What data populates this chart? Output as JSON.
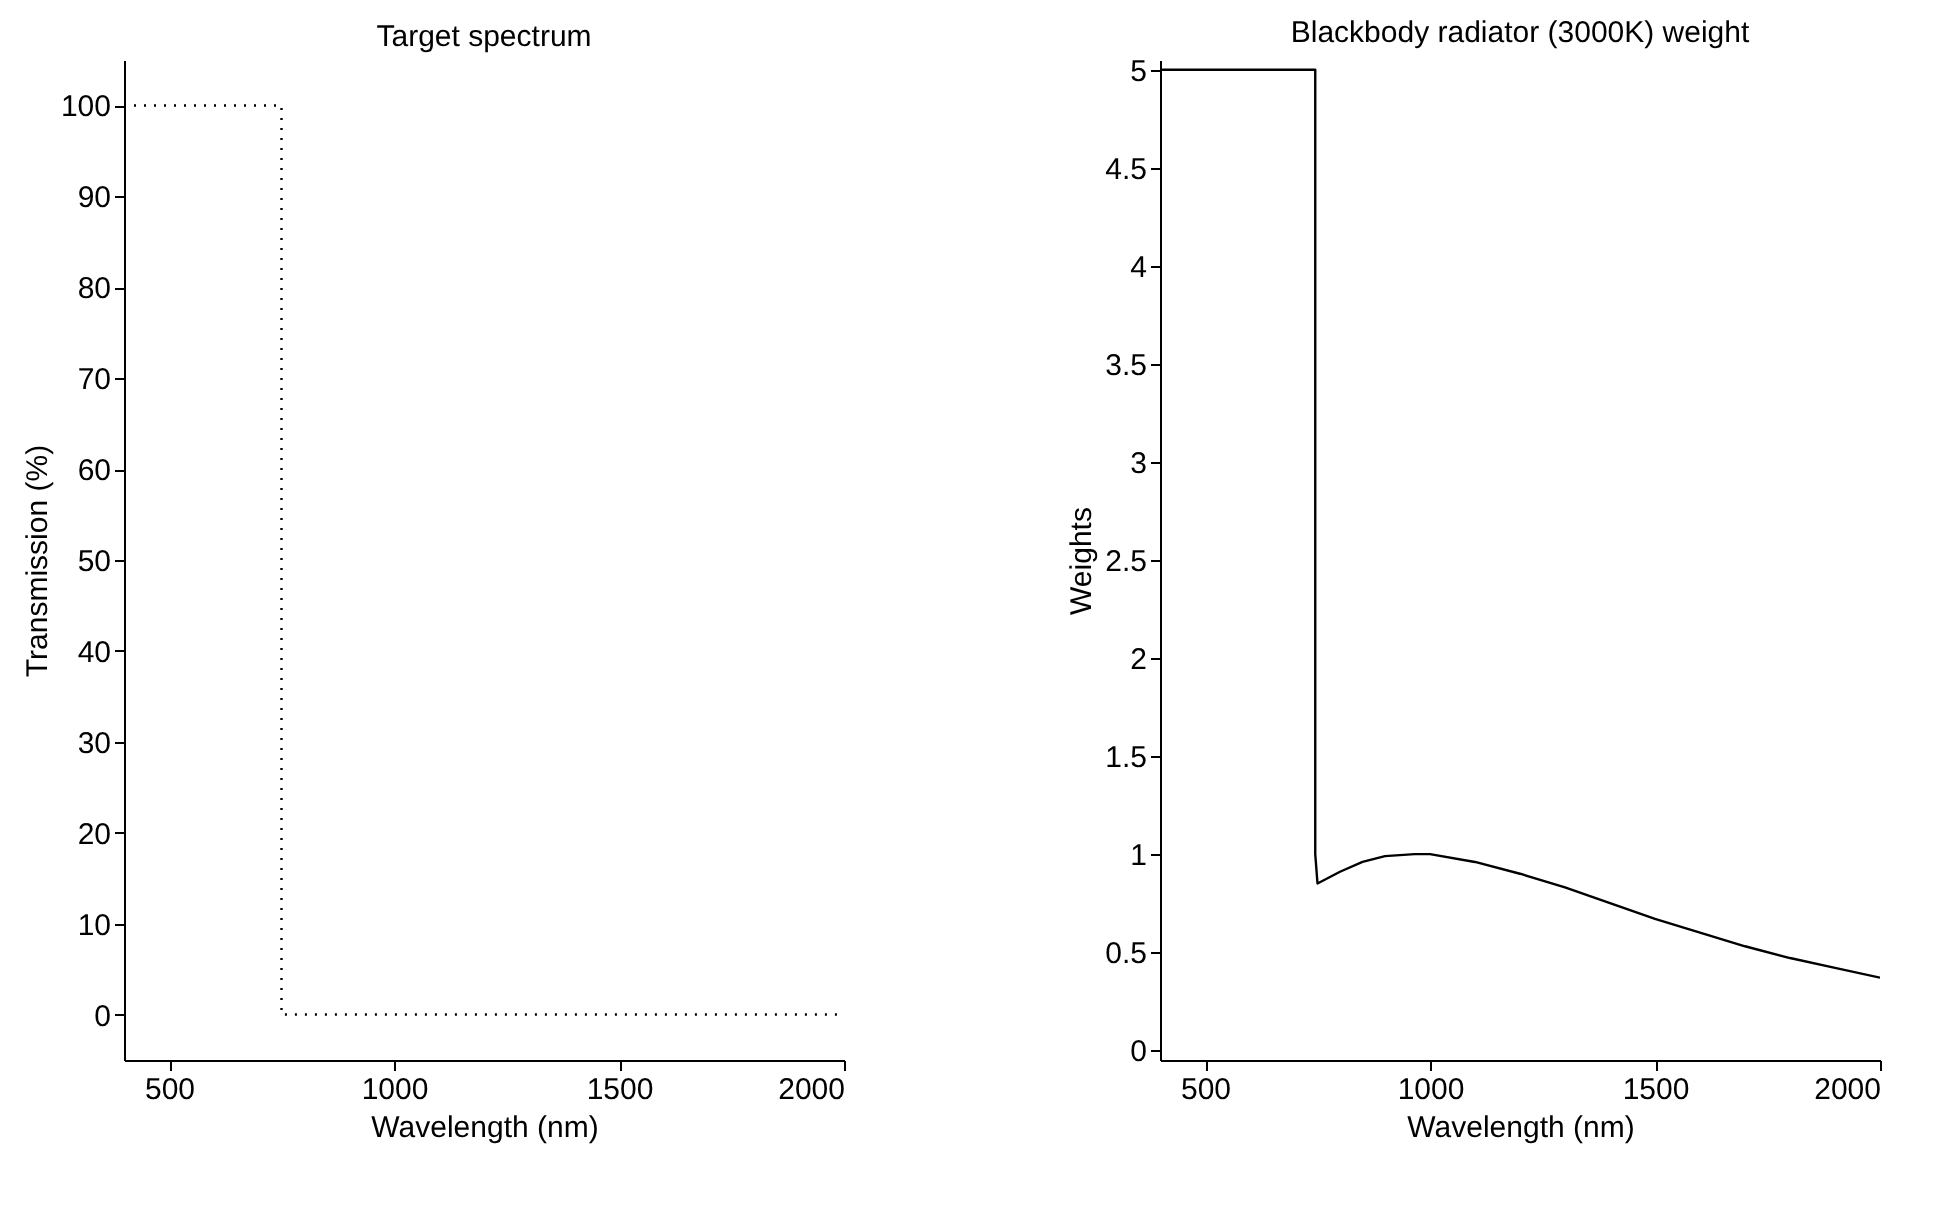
{
  "chart_data": [
    {
      "type": "line",
      "title": "Target spectrum",
      "xlabel": "Wavelength (nm)",
      "ylabel": "Transmission (%)",
      "line_style": "dotted",
      "grid": false,
      "marker": "none",
      "xlim": [
        400,
        2000
      ],
      "xticks": [
        500,
        1000,
        1500,
        2000
      ],
      "ylim": [
        -5,
        105
      ],
      "yticks": [
        0,
        10,
        20,
        30,
        40,
        50,
        60,
        70,
        80,
        90,
        100
      ],
      "series": [
        {
          "color": "#000000",
          "x": [
            400,
            750,
            750,
            2000
          ],
          "values": [
            100,
            100,
            0,
            0
          ]
        }
      ]
    },
    {
      "type": "line",
      "title": "Blackbody radiator (3000K) weight",
      "xlabel": "Wavelength (nm)",
      "ylabel": "Weights",
      "line_style": "solid",
      "grid": false,
      "marker": "none",
      "xlim": [
        400,
        2000
      ],
      "xticks": [
        500,
        1000,
        1500,
        2000
      ],
      "ylim": [
        -0.05,
        5.05
      ],
      "yticks": [
        0,
        0.5,
        1,
        1.5,
        2,
        2.5,
        3,
        3.5,
        4,
        4.5,
        5
      ],
      "series": [
        {
          "color": "#000000",
          "x": [
            400,
            745,
            745,
            750,
            800,
            850,
            900,
            966,
            1000,
            1100,
            1200,
            1300,
            1400,
            1500,
            1600,
            1700,
            1800,
            1900,
            2000
          ],
          "values": [
            5,
            5,
            1.0,
            0.85,
            0.91,
            0.96,
            0.99,
            1.0,
            1.0,
            0.96,
            0.9,
            0.83,
            0.75,
            0.67,
            0.6,
            0.53,
            0.47,
            0.42,
            0.37
          ]
        }
      ]
    }
  ]
}
